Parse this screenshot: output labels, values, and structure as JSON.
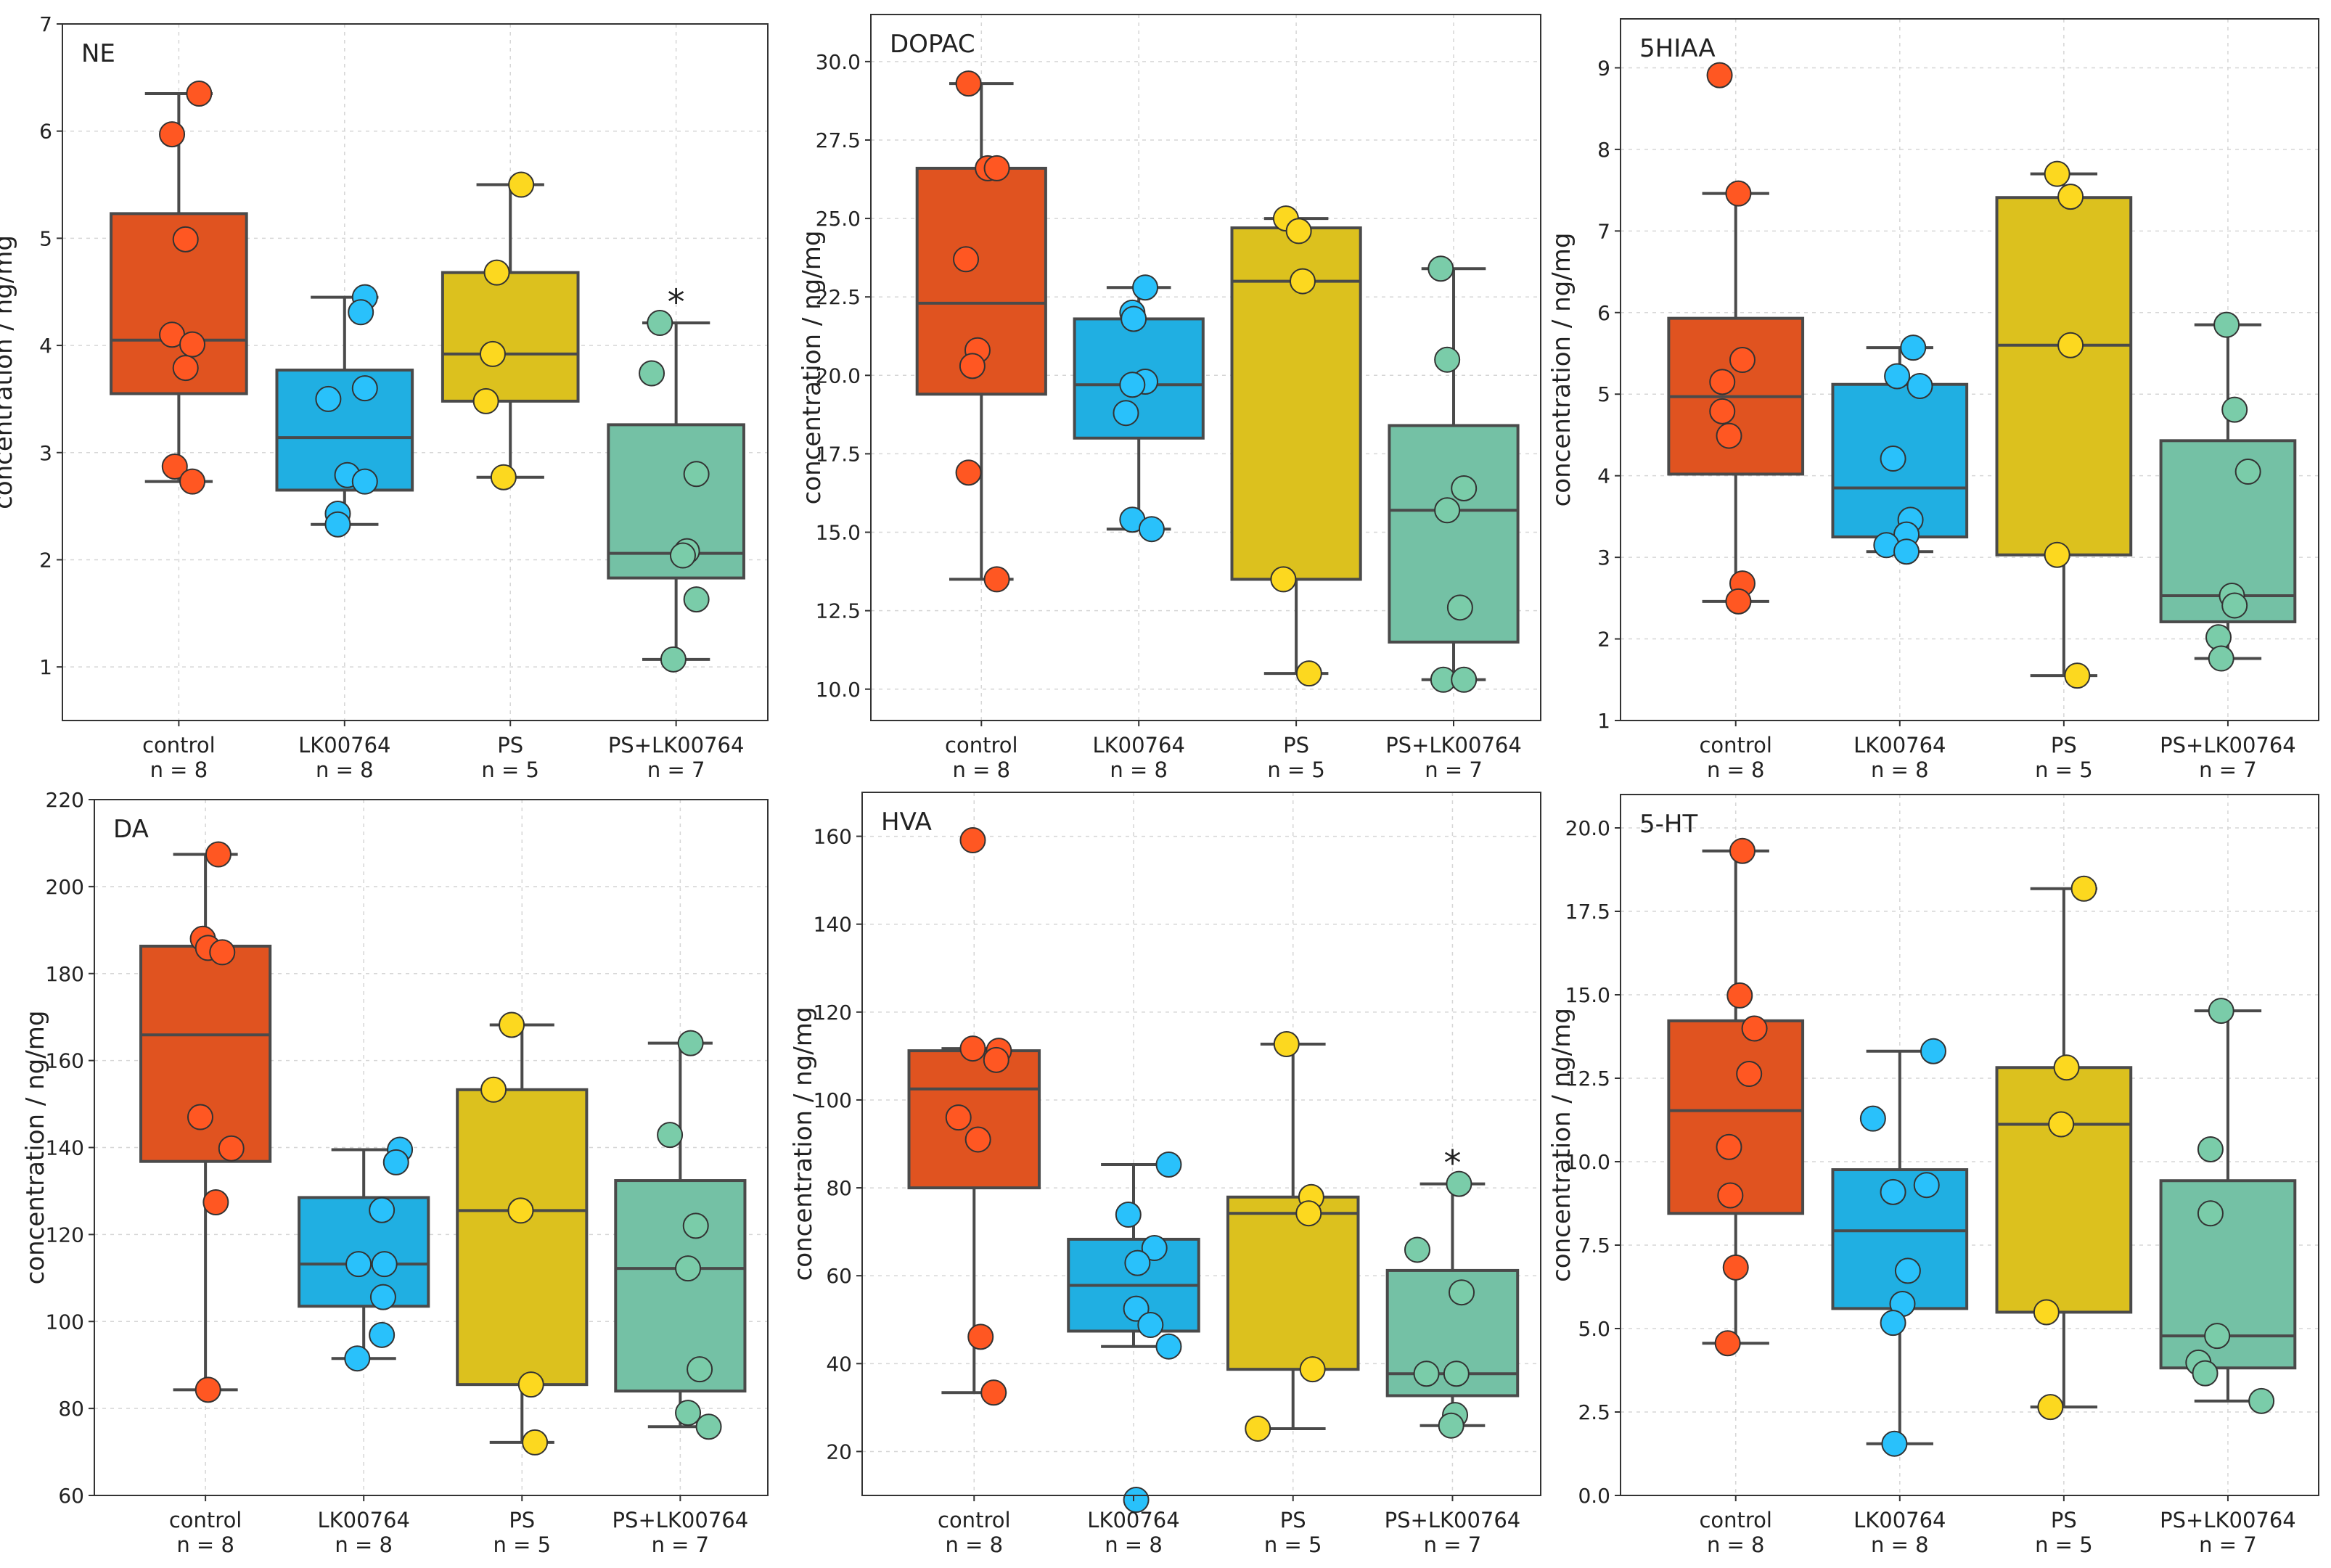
{
  "chart_data": [
    {
      "type": "box",
      "title": "NE",
      "ylabel": "concentration / ng/mg",
      "ylim": [
        0.5,
        7
      ],
      "yticks": [
        1,
        2,
        3,
        4,
        5,
        6,
        7
      ],
      "grid": true,
      "groups": [
        {
          "name": "control",
          "n_label": "n = 8",
          "q1": 3.55,
          "median": 4.05,
          "q3": 5.23,
          "whisker_low": 2.73,
          "whisker_high": 6.35,
          "points": [
            6.35,
            5.97,
            4.99,
            4.1,
            4.01,
            3.79,
            2.87,
            2.73
          ],
          "jitter": [
            0.15,
            -0.05,
            0.05,
            -0.05,
            0.1,
            0.05,
            -0.03,
            0.1
          ],
          "star": ""
        },
        {
          "name": "LK00764",
          "n_label": "n = 8",
          "q1": 2.65,
          "median": 3.14,
          "q3": 3.77,
          "whisker_low": 2.33,
          "whisker_high": 4.45,
          "points": [
            4.45,
            4.31,
            3.6,
            3.5,
            2.79,
            2.73,
            2.43,
            2.33
          ],
          "jitter": [
            0.15,
            0.12,
            0.15,
            -0.12,
            0.02,
            0.15,
            -0.05,
            -0.05
          ],
          "star": ""
        },
        {
          "name": "PS",
          "n_label": "n = 5",
          "q1": 3.48,
          "median": 3.92,
          "q3": 4.68,
          "whisker_low": 2.77,
          "whisker_high": 5.5,
          "points": [
            5.5,
            4.68,
            3.92,
            3.48,
            2.77
          ],
          "jitter": [
            0.08,
            -0.1,
            -0.13,
            -0.18,
            -0.05
          ],
          "star": ""
        },
        {
          "name": "PS+LK00764",
          "n_label": "n = 7",
          "q1": 1.83,
          "median": 2.06,
          "q3": 3.26,
          "whisker_low": 1.07,
          "whisker_high": 4.21,
          "points": [
            4.21,
            3.74,
            2.8,
            2.08,
            2.04,
            1.63,
            1.07
          ],
          "jitter": [
            -0.12,
            -0.18,
            0.15,
            0.08,
            0.05,
            0.15,
            -0.02
          ],
          "star": "*"
        }
      ]
    },
    {
      "type": "box",
      "title": "DOPAC",
      "ylabel": "concentration / ng/mg",
      "ylim": [
        9,
        31.5
      ],
      "yticks": [
        10.0,
        12.5,
        15.0,
        17.5,
        20.0,
        22.5,
        25.0,
        27.5,
        30.0
      ],
      "grid": true,
      "groups": [
        {
          "name": "control",
          "n_label": "n = 8",
          "q1": 19.4,
          "median": 22.3,
          "q3": 26.6,
          "whisker_low": 13.5,
          "whisker_high": 29.3,
          "points": [
            29.3,
            26.6,
            26.6,
            23.7,
            20.8,
            20.3,
            16.9,
            13.5
          ],
          "jitter": [
            -0.1,
            0.05,
            0.12,
            -0.12,
            -0.03,
            -0.07,
            -0.1,
            0.12
          ],
          "star": ""
        },
        {
          "name": "LK00764",
          "n_label": "n = 8",
          "q1": 18.0,
          "median": 19.7,
          "q3": 21.8,
          "whisker_low": 15.1,
          "whisker_high": 22.8,
          "points": [
            22.8,
            22.0,
            21.8,
            19.8,
            19.7,
            18.8,
            15.4,
            15.1
          ],
          "jitter": [
            0.05,
            -0.05,
            -0.04,
            0.05,
            -0.05,
            -0.1,
            -0.05,
            0.1
          ],
          "star": ""
        },
        {
          "name": "PS",
          "n_label": "n = 5",
          "q1": 13.5,
          "median": 23.0,
          "q3": 24.7,
          "whisker_low": 10.5,
          "whisker_high": 25.0,
          "points": [
            25.0,
            24.6,
            23.0,
            13.5,
            10.5
          ],
          "jitter": [
            -0.08,
            0.02,
            0.05,
            -0.1,
            0.1
          ],
          "star": ""
        },
        {
          "name": "PS+LK00764",
          "n_label": "n = 7",
          "q1": 11.5,
          "median": 15.7,
          "q3": 18.4,
          "whisker_low": 10.3,
          "whisker_high": 23.4,
          "points": [
            23.4,
            20.5,
            16.4,
            15.7,
            12.6,
            10.3,
            10.3
          ],
          "jitter": [
            -0.1,
            -0.05,
            0.08,
            -0.05,
            0.05,
            -0.08,
            0.08
          ],
          "star": ""
        }
      ]
    },
    {
      "type": "box",
      "title": "5HIAA",
      "ylabel": "concentration / ng/mg",
      "ylim": [
        1,
        9.6
      ],
      "yticks": [
        1,
        2,
        3,
        4,
        5,
        6,
        7,
        8,
        9
      ],
      "grid": true,
      "groups": [
        {
          "name": "control",
          "n_label": "n = 8",
          "q1": 4.02,
          "median": 4.97,
          "q3": 5.93,
          "whisker_low": 2.46,
          "whisker_high": 7.46,
          "points": [
            8.91,
            7.46,
            5.42,
            5.15,
            4.79,
            4.49,
            2.68,
            2.46
          ],
          "jitter": [
            -0.12,
            0.02,
            0.05,
            -0.1,
            -0.1,
            -0.05,
            0.05,
            0.02
          ],
          "star": ""
        },
        {
          "name": "LK00764",
          "n_label": "n = 8",
          "q1": 3.25,
          "median": 3.85,
          "q3": 5.12,
          "whisker_low": 3.07,
          "whisker_high": 5.57,
          "points": [
            5.57,
            5.22,
            5.1,
            4.21,
            3.46,
            3.28,
            3.15,
            3.07
          ],
          "jitter": [
            0.1,
            -0.02,
            0.15,
            -0.05,
            0.08,
            0.05,
            -0.1,
            0.05
          ],
          "star": ""
        },
        {
          "name": "PS",
          "n_label": "n = 5",
          "q1": 3.03,
          "median": 5.6,
          "q3": 7.41,
          "whisker_low": 1.55,
          "whisker_high": 7.7,
          "points": [
            7.7,
            7.42,
            5.6,
            3.03,
            1.55
          ],
          "jitter": [
            -0.05,
            0.05,
            0.05,
            -0.05,
            0.1
          ],
          "star": ""
        },
        {
          "name": "PS+LK00764",
          "n_label": "n = 7",
          "q1": 2.21,
          "median": 2.53,
          "q3": 4.43,
          "whisker_low": 1.76,
          "whisker_high": 5.85,
          "points": [
            5.85,
            4.81,
            4.05,
            2.53,
            2.41,
            2.02,
            1.76
          ],
          "jitter": [
            -0.01,
            0.05,
            0.15,
            0.03,
            0.05,
            -0.07,
            -0.05
          ],
          "star": ""
        }
      ]
    },
    {
      "type": "box",
      "title": "DA",
      "ylabel": "concentration / ng/mg",
      "ylim": [
        60,
        220
      ],
      "yticks": [
        60,
        80,
        100,
        120,
        140,
        160,
        180,
        200,
        220
      ],
      "grid": true,
      "groups": [
        {
          "name": "control",
          "n_label": "n = 8",
          "q1": 136.8,
          "median": 165.9,
          "q3": 186.3,
          "whisker_low": 84.3,
          "whisker_high": 207.4,
          "points": [
            207.4,
            188.0,
            185.9,
            184.9,
            147.0,
            139.8,
            127.4,
            84.3
          ],
          "jitter": [
            0.1,
            -0.02,
            0.02,
            0.13,
            -0.04,
            0.2,
            0.08,
            0.02
          ],
          "star": ""
        },
        {
          "name": "LK00764",
          "n_label": "n = 8",
          "q1": 103.5,
          "median": 113.2,
          "q3": 128.5,
          "whisker_low": 91.5,
          "whisker_high": 139.5,
          "points": [
            139.5,
            136.6,
            125.6,
            113.2,
            113.2,
            105.6,
            96.9,
            91.5
          ],
          "jitter": [
            0.28,
            0.25,
            0.14,
            -0.04,
            0.16,
            0.15,
            0.14,
            -0.05
          ],
          "star": ""
        },
        {
          "name": "PS",
          "n_label": "n = 5",
          "q1": 85.5,
          "median": 125.5,
          "q3": 153.3,
          "whisker_low": 72.2,
          "whisker_high": 168.2,
          "points": [
            168.2,
            153.3,
            125.5,
            85.5,
            72.2
          ],
          "jitter": [
            -0.08,
            -0.22,
            -0.01,
            0.07,
            0.1
          ],
          "star": ""
        },
        {
          "name": "PS+LK00764",
          "n_label": "n = 7",
          "q1": 84.0,
          "median": 112.2,
          "q3": 132.4,
          "whisker_low": 75.8,
          "whisker_high": 164.0,
          "points": [
            164.0,
            142.9,
            122.0,
            112.2,
            89.0,
            79.0,
            75.8
          ],
          "jitter": [
            0.08,
            -0.08,
            0.12,
            0.06,
            0.15,
            0.06,
            0.22
          ],
          "star": ""
        }
      ]
    },
    {
      "type": "box",
      "title": "HVA",
      "ylabel": "concentration / ng/mg",
      "ylim": [
        10,
        170
      ],
      "yticks": [
        20,
        40,
        60,
        80,
        100,
        120,
        140,
        160
      ],
      "grid": true,
      "groups": [
        {
          "name": "control",
          "n_label": "n = 8",
          "q1": 80.0,
          "median": 102.5,
          "q3": 111.2,
          "whisker_low": 33.4,
          "whisker_high": 111.7,
          "points": [
            159.1,
            111.7,
            111.2,
            109.1,
            96.0,
            91.0,
            46.1,
            33.4
          ],
          "jitter": [
            -0.01,
            -0.01,
            0.19,
            0.17,
            -0.12,
            0.03,
            0.05,
            0.15
          ],
          "star": ""
        },
        {
          "name": "LK00764",
          "n_label": "n = 8",
          "q1": 47.4,
          "median": 57.8,
          "q3": 68.3,
          "whisker_low": 43.9,
          "whisker_high": 85.3,
          "points": [
            85.3,
            73.9,
            66.3,
            62.9,
            52.5,
            48.8,
            43.9,
            9.0
          ],
          "jitter": [
            0.27,
            -0.04,
            0.16,
            0.03,
            0.02,
            0.13,
            0.27,
            0.02
          ],
          "star": ""
        },
        {
          "name": "PS",
          "n_label": "n = 5",
          "q1": 38.7,
          "median": 74.2,
          "q3": 77.9,
          "whisker_low": 25.2,
          "whisker_high": 112.7,
          "points": [
            112.7,
            77.9,
            74.2,
            38.7,
            25.2
          ],
          "jitter": [
            -0.05,
            0.14,
            0.12,
            0.15,
            -0.27
          ],
          "star": ""
        },
        {
          "name": "PS+LK00764",
          "n_label": "n = 7",
          "q1": 32.7,
          "median": 37.7,
          "q3": 61.2,
          "whisker_low": 25.9,
          "whisker_high": 80.9,
          "points": [
            80.9,
            65.9,
            56.2,
            37.7,
            37.7,
            28.3,
            25.9
          ],
          "jitter": [
            0.05,
            -0.27,
            0.07,
            -0.2,
            0.03,
            0.02,
            -0.01
          ],
          "star": "*"
        }
      ]
    },
    {
      "type": "box",
      "title": "5-HT",
      "ylabel": "concentration / ng/mg",
      "ylim": [
        0,
        21
      ],
      "yticks": [
        0.0,
        2.5,
        5.0,
        7.5,
        10.0,
        12.5,
        15.0,
        17.5,
        20.0
      ],
      "grid": true,
      "groups": [
        {
          "name": "control",
          "n_label": "n = 8",
          "q1": 8.45,
          "median": 11.53,
          "q3": 14.22,
          "whisker_low": 4.56,
          "whisker_high": 19.31,
          "points": [
            19.31,
            14.98,
            13.99,
            12.63,
            10.44,
            8.99,
            6.83,
            4.56
          ],
          "jitter": [
            0.05,
            0.03,
            0.14,
            0.1,
            -0.05,
            -0.04,
            0.0,
            -0.06
          ],
          "star": ""
        },
        {
          "name": "LK00764",
          "n_label": "n = 8",
          "q1": 5.6,
          "median": 7.93,
          "q3": 9.76,
          "whisker_low": 1.55,
          "whisker_high": 13.31,
          "points": [
            13.31,
            11.29,
            9.3,
            9.09,
            6.73,
            5.74,
            5.17,
            1.55
          ],
          "jitter": [
            0.25,
            -0.2,
            0.2,
            -0.05,
            0.06,
            0.02,
            -0.05,
            -0.04
          ],
          "star": ""
        },
        {
          "name": "PS",
          "n_label": "n = 5",
          "q1": 5.49,
          "median": 11.12,
          "q3": 12.82,
          "whisker_low": 2.65,
          "whisker_high": 18.18,
          "points": [
            18.18,
            12.82,
            11.12,
            5.49,
            2.65
          ],
          "jitter": [
            0.15,
            0.02,
            -0.02,
            -0.13,
            -0.1
          ],
          "star": ""
        },
        {
          "name": "PS+LK00764",
          "n_label": "n = 7",
          "q1": 3.82,
          "median": 4.78,
          "q3": 9.43,
          "whisker_low": 2.83,
          "whisker_high": 14.52,
          "points": [
            14.52,
            10.37,
            8.45,
            4.78,
            3.98,
            3.66,
            2.83
          ],
          "jitter": [
            -0.05,
            -0.13,
            -0.13,
            -0.08,
            -0.22,
            -0.17,
            0.25
          ],
          "star": ""
        }
      ]
    }
  ],
  "colors": {
    "control": "#e05320",
    "LK00764": "#20afe2",
    "PS": "#dcc11e",
    "PS+LK00764": "#74c1a5",
    "point_control": "#ff5722",
    "point_LK00764": "#29c1fb",
    "point_PS": "#fcd81f",
    "point_PS+LK00764": "#7acca9"
  }
}
